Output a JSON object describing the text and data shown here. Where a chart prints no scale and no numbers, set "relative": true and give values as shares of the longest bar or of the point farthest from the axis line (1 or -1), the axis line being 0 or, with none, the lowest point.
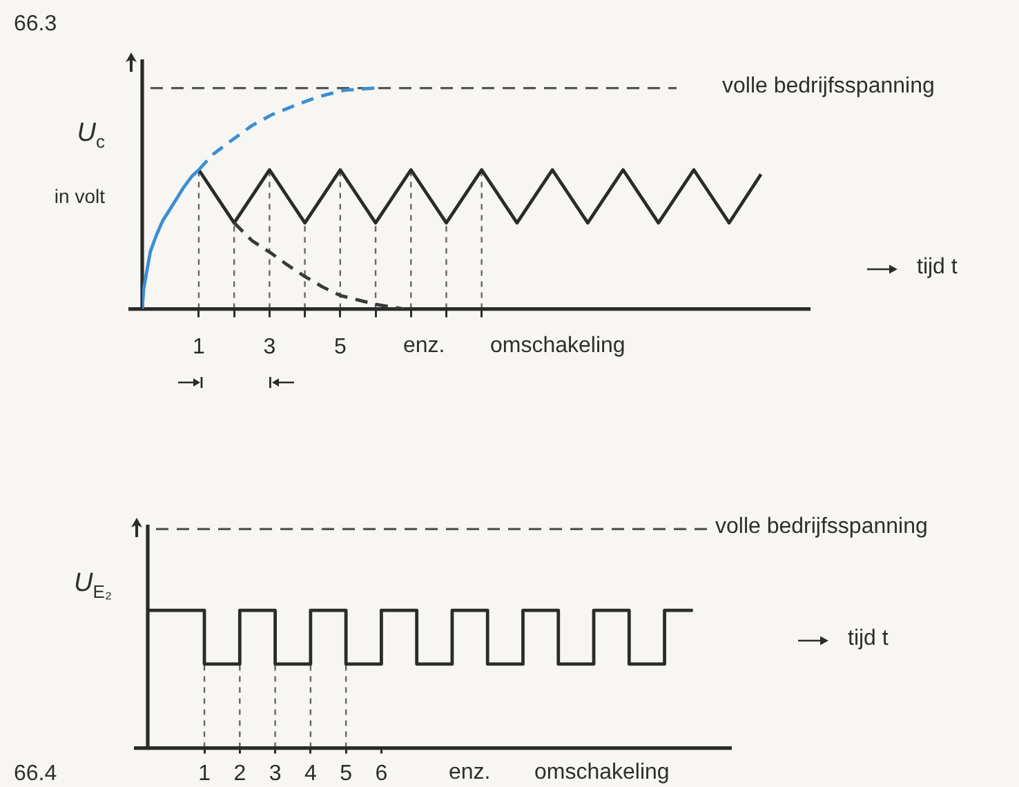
{
  "chart_data": [
    {
      "type": "line",
      "title": "66.3",
      "ylabel": "U$_{c}$ in volt",
      "xlabel": "tijd t",
      "relative": true,
      "xlim": [
        -0.6,
        18.3
      ],
      "xticks": [
        1,
        {
          "value": 2,
          "label": null
        },
        3,
        {
          "value": 4,
          "label": null
        },
        5,
        {
          "value": 6,
          "label": null
        },
        {
          "value": 7,
          "label": null
        },
        {
          "value": 8,
          "label": null
        },
        {
          "value": 9,
          "label": null
        }
      ],
      "series": [
        {
          "color": "#2b2b2b",
          "x": [
            1,
            2,
            3,
            4,
            5,
            6,
            7,
            8,
            9,
            10,
            11,
            12,
            13,
            14,
            15,
            16,
            16.9
          ],
          "values": [
            0.63,
            0.39,
            0.63,
            0.39,
            0.63,
            0.39,
            0.63,
            0.39,
            0.63,
            0.39,
            0.63,
            0.39,
            0.63,
            0.39,
            0.63,
            0.39,
            0.61
          ]
        },
        {
          "color": "#3a8fd4",
          "x": [
            -0.6,
            -0.56,
            -0.46,
            -0.37,
            -0.21,
            -0.02,
            0.18,
            0.57,
            0.8,
            1
          ],
          "values": [
            0,
            0.09,
            0.18,
            0.26,
            0.33,
            0.4,
            0.45,
            0.55,
            0.6,
            0.63
          ]
        },
        {
          "color": "#3a8fd4",
          "line_style": "dashed",
          "x": [
            1,
            1.4,
            1.9,
            2.5,
            3.07,
            3.7,
            4.36,
            5.1,
            6
          ],
          "values": [
            0.63,
            0.7,
            0.76,
            0.83,
            0.88,
            0.92,
            0.96,
            0.99,
            1
          ]
        },
        {
          "color": "#3a3a3a",
          "line_style": "dashed",
          "x": [
            2,
            2.5,
            3.07,
            3.5,
            3.97,
            4.5,
            5.02,
            6.04,
            6.8
          ],
          "values": [
            0.39,
            0.31,
            0.25,
            0.2,
            0.15,
            0.1,
            0.06,
            0.02,
            0
          ]
        }
      ],
      "ref_lines": [
        {
          "axis": "y",
          "value": 1,
          "label": "volle bedrijfsspanning",
          "line_style": "dashed",
          "color": "#555555"
        },
        {
          "axis": "x",
          "value": 1,
          "line_style": "dashed",
          "color": "#666666"
        },
        {
          "axis": "x",
          "value": 2,
          "line_style": "dashed",
          "color": "#666666"
        },
        {
          "axis": "x",
          "value": 3,
          "line_style": "dashed",
          "color": "#666666"
        },
        {
          "axis": "x",
          "value": 4,
          "line_style": "dashed",
          "color": "#666666"
        },
        {
          "axis": "x",
          "value": 5,
          "line_style": "dashed",
          "color": "#666666"
        },
        {
          "axis": "x",
          "value": 6,
          "line_style": "dashed",
          "color": "#666666"
        },
        {
          "axis": "x",
          "value": 7,
          "line_style": "dashed",
          "color": "#666666"
        },
        {
          "axis": "x",
          "value": 8,
          "line_style": "dashed",
          "color": "#666666"
        },
        {
          "axis": "x",
          "value": 9,
          "line_style": "dashed",
          "color": "#666666"
        }
      ],
      "annotations": [
        "enz.",
        "omschakeling"
      ]
    },
    {
      "type": "step",
      "title": "66.4",
      "ylabel": "U$_{E₂}$",
      "xlabel": "tijd t",
      "relative": true,
      "xlim": [
        -0.6,
        15.9
      ],
      "xticks": [
        1,
        2,
        3,
        4,
        5,
        6
      ],
      "series": [
        {
          "color": "#2b2b2b",
          "x": [
            -0.6,
            1,
            2,
            3,
            4,
            5,
            6,
            7,
            8,
            9,
            10,
            11,
            12,
            13,
            14,
            14.8
          ],
          "values": [
            1,
            0.61,
            1,
            0.61,
            1,
            0.61,
            1,
            0.61,
            1,
            0.61,
            1,
            0.61,
            1,
            0.61,
            1,
            1
          ]
        }
      ],
      "ref_lines": [
        {
          "axis": "y",
          "value": 1.59,
          "label": "volle bedrijfsspanning",
          "line_style": "dashed",
          "color": "#555555"
        },
        {
          "axis": "x",
          "value": 1,
          "line_style": "dashed",
          "color": "#666666"
        },
        {
          "axis": "x",
          "value": 2,
          "line_style": "dashed",
          "color": "#666666"
        },
        {
          "axis": "x",
          "value": 3,
          "line_style": "dashed",
          "color": "#666666"
        },
        {
          "axis": "x",
          "value": 4,
          "line_style": "dashed",
          "color": "#666666"
        },
        {
          "axis": "x",
          "value": 5,
          "line_style": "dashed",
          "color": "#666666"
        }
      ],
      "annotations": [
        "enz.",
        "omschakeling"
      ]
    }
  ]
}
